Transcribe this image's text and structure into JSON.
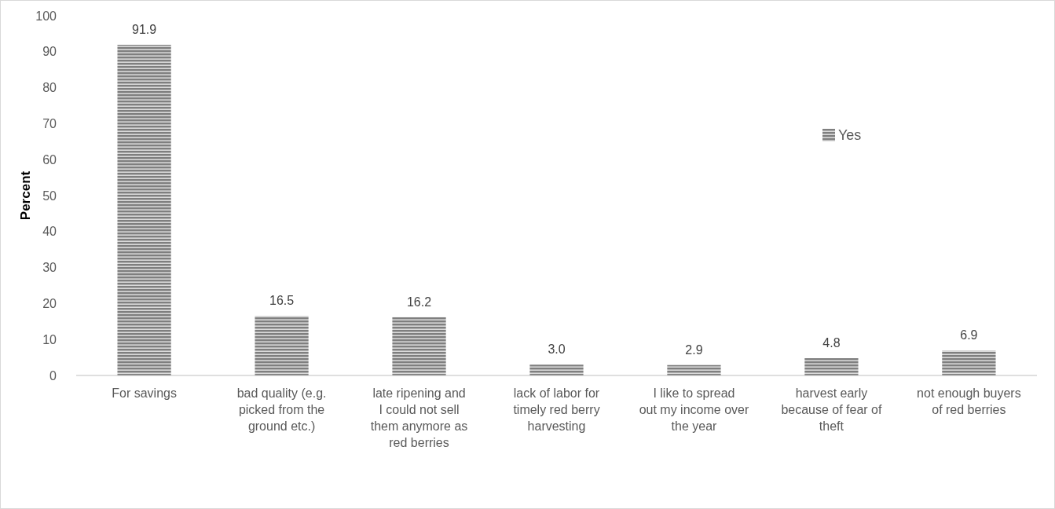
{
  "chart_data": {
    "type": "bar",
    "ylabel": "Percent",
    "categories": [
      "For savings",
      "bad quality (e.g. picked from the ground etc.)",
      "late ripening and I could not sell them anymore as red berries",
      "lack of labor for timely red berry harvesting",
      "I like to spread out my income over the year",
      "harvest early because of fear of theft",
      "not enough buyers of red berries"
    ],
    "series": [
      {
        "name": "Yes",
        "color": "#7f7f7f",
        "values": [
          91.9,
          16.5,
          16.2,
          3.0,
          2.9,
          4.8,
          6.9
        ]
      }
    ],
    "value_labels": [
      "91.9",
      "16.5",
      "16.2",
      "3.0",
      "2.9",
      "4.8",
      "6.9"
    ],
    "ylim": [
      0,
      100
    ],
    "yticks": [
      0,
      10,
      20,
      30,
      40,
      50,
      60,
      70,
      80,
      90,
      100
    ],
    "grid": false,
    "legend": "right"
  }
}
